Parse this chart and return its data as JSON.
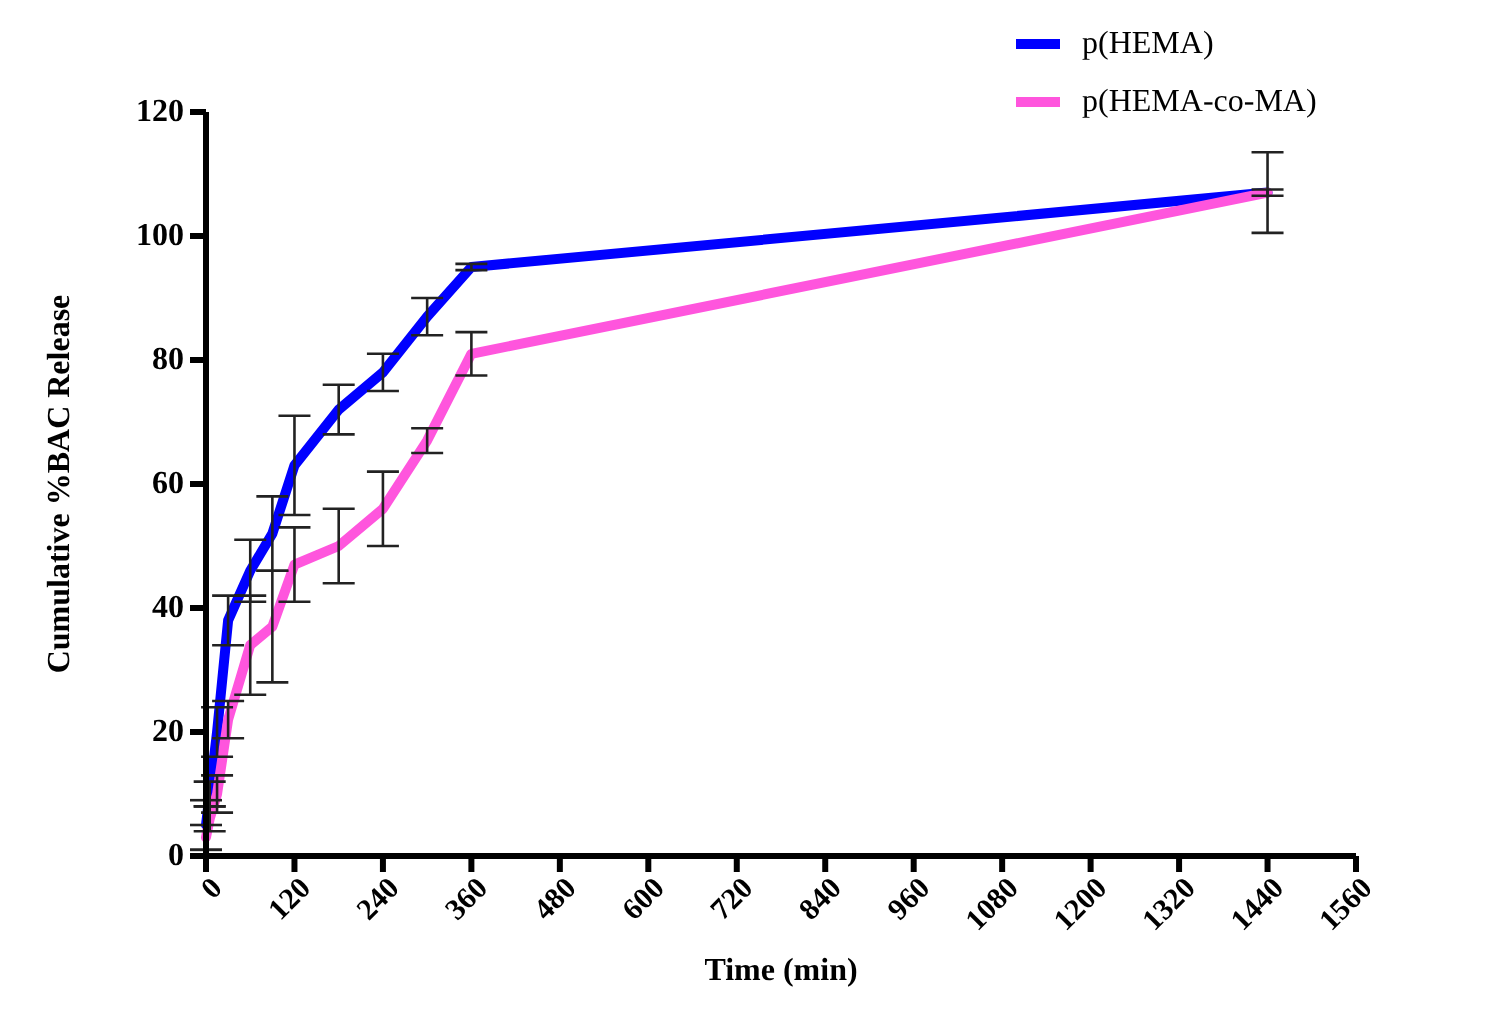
{
  "chart_data": {
    "type": "line",
    "xlabel": "Time (min)",
    "ylabel": "Cumulative %BAC Release",
    "x": [
      0,
      5,
      15,
      30,
      60,
      90,
      120,
      180,
      240,
      300,
      360,
      1440
    ],
    "xlim": [
      0,
      1560
    ],
    "xticks": [
      0,
      120,
      240,
      360,
      480,
      600,
      720,
      840,
      960,
      1080,
      1200,
      1320,
      1440,
      1560
    ],
    "ylim": [
      0,
      120
    ],
    "yticks": [
      0,
      20,
      40,
      60,
      80,
      100,
      120
    ],
    "grid": false,
    "legend": "top right",
    "marker": "none",
    "line_style": "solid",
    "series": [
      {
        "name": "p(HEMA)",
        "color": "#0000ff",
        "values": [
          5,
          10,
          20,
          38,
          46,
          52,
          63,
          72,
          78,
          87,
          95,
          107
        ],
        "errors": [
          4,
          2,
          4,
          4,
          5,
          6,
          8,
          4,
          3,
          3,
          0.5,
          0.5
        ]
      },
      {
        "name": "p(HEMA-co-MA)",
        "color": "#ff55dd",
        "values": [
          3,
          6,
          10,
          22,
          34,
          37,
          47,
          50,
          56,
          67,
          81,
          107
        ],
        "errors": [
          2,
          2,
          3,
          3,
          8,
          9,
          6,
          6,
          6,
          2,
          3.5,
          6.5
        ]
      }
    ]
  }
}
